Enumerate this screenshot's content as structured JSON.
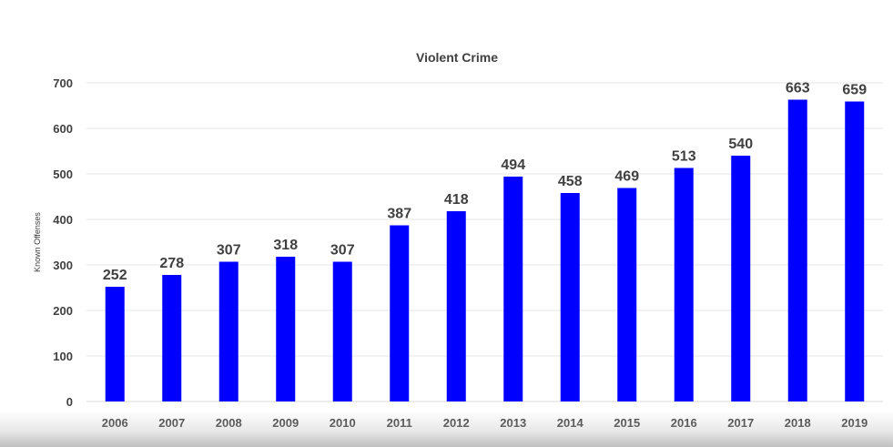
{
  "chart_data": {
    "type": "bar",
    "title": "Violent Crime",
    "xlabel": "",
    "ylabel": "Known Offenses",
    "categories": [
      "2006",
      "2007",
      "2008",
      "2009",
      "2010",
      "2011",
      "2012",
      "2013",
      "2014",
      "2015",
      "2016",
      "2017",
      "2018",
      "2019"
    ],
    "values": [
      252,
      278,
      307,
      318,
      307,
      387,
      418,
      494,
      458,
      469,
      513,
      540,
      663,
      659
    ],
    "data_labels": [
      "252",
      "278",
      "307",
      "318",
      "307",
      "387",
      "418",
      "494",
      "458",
      "469",
      "513",
      "540",
      "663",
      "659"
    ],
    "ylim": [
      0,
      700
    ],
    "yticks": [
      "0",
      "100",
      "200",
      "300",
      "400",
      "500",
      "600",
      "700"
    ],
    "grid": true,
    "legend": "none",
    "bar_color": "#0000ff"
  }
}
